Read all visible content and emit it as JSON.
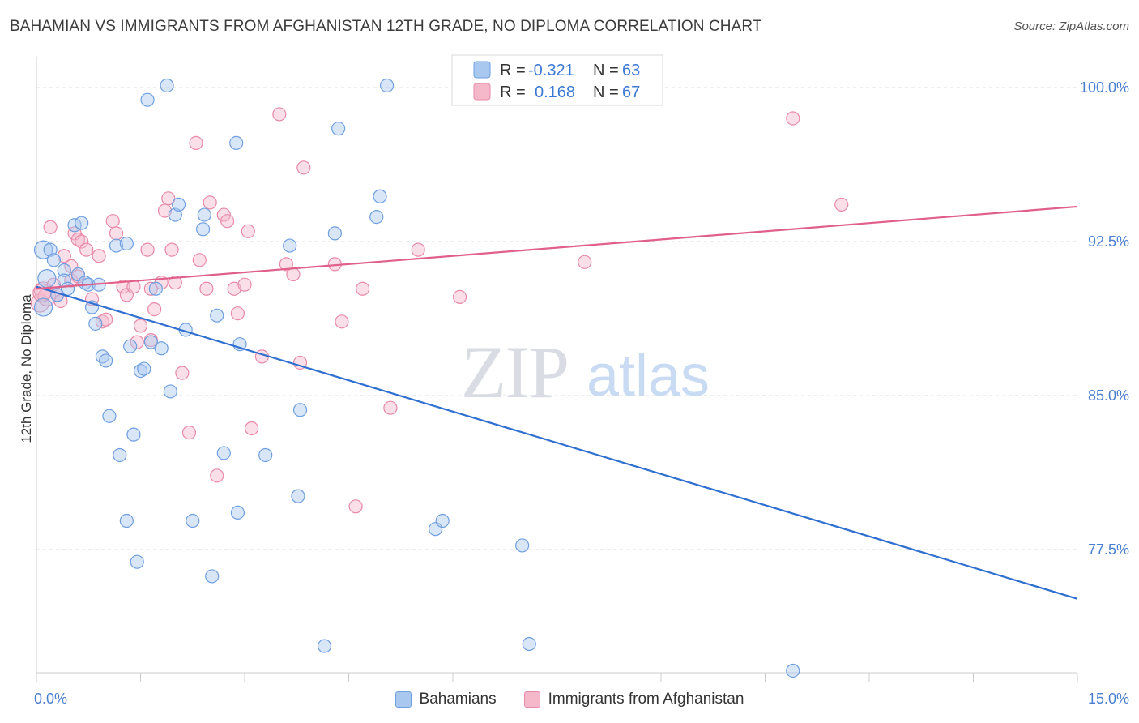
{
  "title": "BAHAMIAN VS IMMIGRANTS FROM AFGHANISTAN 12TH GRADE, NO DIPLOMA CORRELATION CHART",
  "source": "Source: ZipAtlas.com",
  "watermark": {
    "zip": "ZIP",
    "atlas": "atlas"
  },
  "legend_box": {
    "rows": [
      {
        "r_label": "R =",
        "r_value": "-0.321",
        "n_label": "N =",
        "n_value": "63"
      },
      {
        "r_label": "R =",
        "r_value": "0.168",
        "n_label": "N =",
        "n_value": "67"
      }
    ]
  },
  "colors": {
    "blue_fill": "#a9c8f0",
    "blue_stroke": "#6f9fe0",
    "blue_line": "#2f6fcf",
    "pink_fill": "#f5b8cb",
    "pink_stroke": "#e88aa8",
    "pink_line": "#e0608a",
    "accent_text": "#3b78d4"
  },
  "chart_data": {
    "type": "scatter",
    "title": "BAHAMIAN VS IMMIGRANTS FROM AFGHANISTAN 12TH GRADE, NO DIPLOMA CORRELATION CHART",
    "xlabel": "",
    "ylabel": "12th Grade, No Diploma",
    "xlim": [
      0,
      15
    ],
    "ylim": [
      71.5,
      101.5
    ],
    "x_tick_labels": [
      "0.0%",
      "15.0%"
    ],
    "y_ticks": [
      77.5,
      85.0,
      92.5,
      100.0
    ],
    "y_tick_labels": [
      "77.5%",
      "85.0%",
      "92.5%",
      "100.0%"
    ],
    "grid": true,
    "legend_position": "top-center",
    "series": [
      {
        "name": "Bahamians",
        "R": -0.321,
        "N": 63,
        "trend": {
          "x": [
            0,
            15
          ],
          "y": [
            90.3,
            75.1
          ]
        },
        "points": [
          [
            0.1,
            89.3
          ],
          [
            0.1,
            92.1
          ],
          [
            0.15,
            90.7
          ],
          [
            0.2,
            92.1
          ],
          [
            0.25,
            91.6
          ],
          [
            0.3,
            89.9
          ],
          [
            0.4,
            91.1
          ],
          [
            0.4,
            90.6
          ],
          [
            0.45,
            90.2
          ],
          [
            0.55,
            93.3
          ],
          [
            0.6,
            90.9
          ],
          [
            0.65,
            93.4
          ],
          [
            0.7,
            90.5
          ],
          [
            0.75,
            90.4
          ],
          [
            0.8,
            89.3
          ],
          [
            0.85,
            88.5
          ],
          [
            0.9,
            90.4
          ],
          [
            0.95,
            86.9
          ],
          [
            1.0,
            86.7
          ],
          [
            1.05,
            84.0
          ],
          [
            1.15,
            92.3
          ],
          [
            1.2,
            82.1
          ],
          [
            1.3,
            78.9
          ],
          [
            1.3,
            92.4
          ],
          [
            1.35,
            87.4
          ],
          [
            1.4,
            83.1
          ],
          [
            1.45,
            76.9
          ],
          [
            1.5,
            86.2
          ],
          [
            1.55,
            86.3
          ],
          [
            1.6,
            99.4
          ],
          [
            1.65,
            87.6
          ],
          [
            1.72,
            90.2
          ],
          [
            1.8,
            87.3
          ],
          [
            1.88,
            100.1
          ],
          [
            1.93,
            85.2
          ],
          [
            2.0,
            93.8
          ],
          [
            2.05,
            94.3
          ],
          [
            2.15,
            88.2
          ],
          [
            2.25,
            78.9
          ],
          [
            2.4,
            93.1
          ],
          [
            2.42,
            93.8
          ],
          [
            2.53,
            76.2
          ],
          [
            2.6,
            88.9
          ],
          [
            2.7,
            82.2
          ],
          [
            2.88,
            97.3
          ],
          [
            2.9,
            79.3
          ],
          [
            2.93,
            87.5
          ],
          [
            3.3,
            82.1
          ],
          [
            3.65,
            92.3
          ],
          [
            3.77,
            80.1
          ],
          [
            3.8,
            84.3
          ],
          [
            4.15,
            72.8
          ],
          [
            4.3,
            92.9
          ],
          [
            4.35,
            98.0
          ],
          [
            4.9,
            93.7
          ],
          [
            4.95,
            94.7
          ],
          [
            5.05,
            100.1
          ],
          [
            5.75,
            78.5
          ],
          [
            5.85,
            78.9
          ],
          [
            7.0,
            77.7
          ],
          [
            7.1,
            72.9
          ],
          [
            7.0,
            100.1
          ],
          [
            10.9,
            71.6
          ]
        ]
      },
      {
        "name": "Immigrants from Afghanistan",
        "R": 0.168,
        "N": 67,
        "trend": {
          "x": [
            0,
            15
          ],
          "y": [
            90.2,
            94.2
          ]
        },
        "points": [
          [
            0.05,
            89.5
          ],
          [
            0.1,
            90.1
          ],
          [
            0.15,
            89.8
          ],
          [
            0.2,
            93.2
          ],
          [
            0.25,
            90.4
          ],
          [
            0.3,
            89.9
          ],
          [
            0.4,
            91.8
          ],
          [
            0.5,
            90.6
          ],
          [
            0.5,
            91.3
          ],
          [
            0.55,
            92.9
          ],
          [
            0.6,
            92.6
          ],
          [
            0.65,
            92.5
          ],
          [
            0.72,
            92.1
          ],
          [
            0.8,
            89.7
          ],
          [
            0.9,
            91.8
          ],
          [
            0.95,
            88.6
          ],
          [
            1.0,
            88.7
          ],
          [
            1.1,
            93.5
          ],
          [
            1.15,
            92.9
          ],
          [
            1.25,
            90.3
          ],
          [
            1.3,
            89.9
          ],
          [
            1.4,
            90.3
          ],
          [
            1.45,
            87.6
          ],
          [
            1.5,
            88.4
          ],
          [
            1.6,
            92.1
          ],
          [
            1.65,
            90.2
          ],
          [
            1.65,
            87.7
          ],
          [
            1.7,
            89.2
          ],
          [
            1.8,
            90.5
          ],
          [
            1.85,
            94.0
          ],
          [
            1.9,
            94.6
          ],
          [
            1.95,
            92.1
          ],
          [
            2.0,
            90.5
          ],
          [
            2.1,
            86.1
          ],
          [
            2.2,
            83.2
          ],
          [
            2.3,
            97.3
          ],
          [
            2.35,
            91.6
          ],
          [
            2.45,
            90.2
          ],
          [
            2.5,
            94.4
          ],
          [
            2.6,
            81.1
          ],
          [
            2.7,
            93.8
          ],
          [
            2.75,
            93.5
          ],
          [
            2.85,
            90.2
          ],
          [
            2.9,
            89.0
          ],
          [
            3.0,
            90.4
          ],
          [
            3.05,
            93.0
          ],
          [
            3.1,
            83.4
          ],
          [
            3.25,
            86.9
          ],
          [
            3.5,
            98.7
          ],
          [
            3.6,
            91.4
          ],
          [
            3.7,
            90.9
          ],
          [
            3.8,
            86.6
          ],
          [
            3.85,
            96.1
          ],
          [
            4.3,
            91.4
          ],
          [
            4.4,
            88.6
          ],
          [
            4.6,
            79.6
          ],
          [
            4.7,
            90.2
          ],
          [
            5.1,
            84.4
          ],
          [
            5.5,
            92.1
          ],
          [
            6.1,
            89.8
          ],
          [
            7.2,
            100.1
          ],
          [
            7.9,
            91.5
          ],
          [
            10.9,
            98.5
          ],
          [
            11.6,
            94.3
          ],
          [
            0.08,
            90.0
          ],
          [
            0.35,
            89.6
          ],
          [
            0.6,
            90.8
          ]
        ]
      }
    ]
  }
}
